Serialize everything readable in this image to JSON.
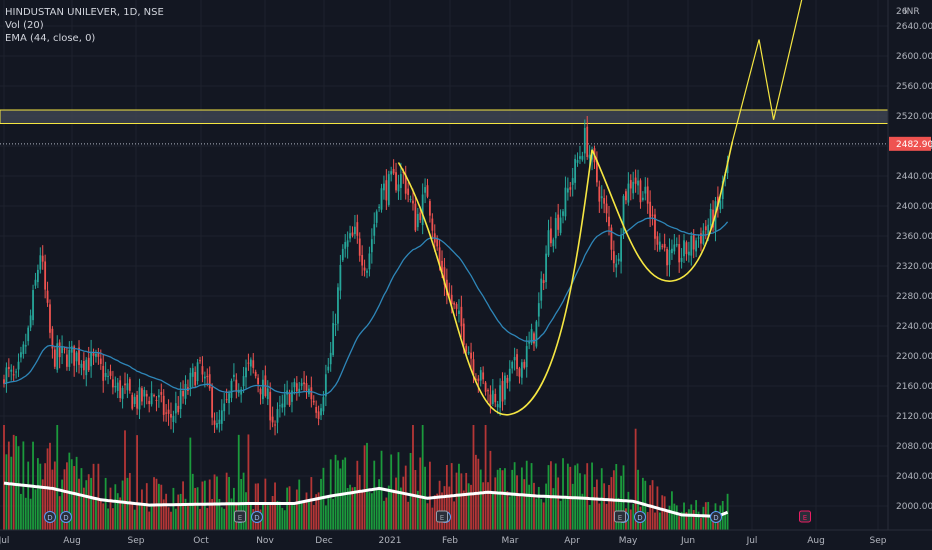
{
  "legend": {
    "symbol": "HINDUSTAN UNILEVER, 1D, NSE",
    "volume": "Vol (20)",
    "ema": "EMA (44, close, 0)"
  },
  "colors": {
    "background": "#131722",
    "up": "#26a69a",
    "down": "#ef5350",
    "vol_up": "#1b9a3c",
    "vol_down": "#b53636",
    "ema": "#2e86b8",
    "pattern": "#f5e642",
    "volume_ma": "#ffffff",
    "zone": "#3d4350",
    "price_label": "#ef5350"
  },
  "chart_data": {
    "type": "candlestick",
    "currency": "INR",
    "ylim": [
      1985,
      2680
    ],
    "y_ticks": [
      2000,
      2040,
      2080,
      2120,
      2160,
      2200,
      2240,
      2280,
      2320,
      2360,
      2400,
      2440,
      2480,
      2520,
      2560,
      2600,
      2640
    ],
    "top_tick_partial": "26",
    "x_labels": [
      "Jul",
      "Aug",
      "Sep",
      "Oct",
      "Nov",
      "Dec",
      "2021",
      "Feb",
      "Mar",
      "Apr",
      "May",
      "Jun",
      "Jul",
      "Aug",
      "Sep"
    ],
    "last_price": "2482.90",
    "resistance_zone": [
      2510,
      2528
    ],
    "price_path_key_points": [
      [
        0,
        2180
      ],
      [
        5,
        2165
      ],
      [
        10,
        2230
      ],
      [
        15,
        2340
      ],
      [
        20,
        2200
      ],
      [
        30,
        2200
      ],
      [
        38,
        2190
      ],
      [
        45,
        2160
      ],
      [
        55,
        2140
      ],
      [
        62,
        2150
      ],
      [
        68,
        2115
      ],
      [
        75,
        2150
      ],
      [
        80,
        2185
      ],
      [
        85,
        2150
      ],
      [
        88,
        2100
      ],
      [
        95,
        2160
      ],
      [
        102,
        2185
      ],
      [
        108,
        2150
      ],
      [
        112,
        2110
      ],
      [
        118,
        2150
      ],
      [
        125,
        2160
      ],
      [
        130,
        2130
      ],
      [
        135,
        2200
      ],
      [
        140,
        2340
      ],
      [
        145,
        2360
      ],
      [
        150,
        2320
      ],
      [
        155,
        2415
      ],
      [
        160,
        2430
      ],
      [
        165,
        2440
      ],
      [
        170,
        2380
      ],
      [
        175,
        2420
      ],
      [
        180,
        2320
      ],
      [
        185,
        2270
      ],
      [
        190,
        2230
      ],
      [
        195,
        2180
      ],
      [
        200,
        2150
      ],
      [
        205,
        2145
      ],
      [
        210,
        2180
      ],
      [
        215,
        2195
      ],
      [
        220,
        2240
      ],
      [
        225,
        2360
      ],
      [
        230,
        2390
      ],
      [
        235,
        2440
      ],
      [
        240,
        2490
      ],
      [
        243,
        2460
      ],
      [
        246,
        2420
      ],
      [
        250,
        2370
      ],
      [
        253,
        2315
      ],
      [
        256,
        2410
      ],
      [
        260,
        2440
      ],
      [
        265,
        2410
      ],
      [
        270,
        2360
      ],
      [
        275,
        2330
      ],
      [
        280,
        2335
      ],
      [
        285,
        2350
      ],
      [
        290,
        2370
      ],
      [
        295,
        2395
      ],
      [
        300,
        2470
      ]
    ],
    "volume_ma_key_points": [
      [
        0,
        0.62
      ],
      [
        20,
        0.55
      ],
      [
        40,
        0.4
      ],
      [
        60,
        0.33
      ],
      [
        80,
        0.34
      ],
      [
        100,
        0.35
      ],
      [
        120,
        0.35
      ],
      [
        135,
        0.45
      ],
      [
        155,
        0.55
      ],
      [
        175,
        0.42
      ],
      [
        200,
        0.5
      ],
      [
        220,
        0.45
      ],
      [
        240,
        0.42
      ],
      [
        260,
        0.38
      ],
      [
        280,
        0.2
      ],
      [
        295,
        0.18
      ],
      [
        300,
        0.25
      ]
    ],
    "pattern_note": "cup and handle with projected breakout path",
    "events": {
      "dividends": 8,
      "earnings": 4
    }
  }
}
